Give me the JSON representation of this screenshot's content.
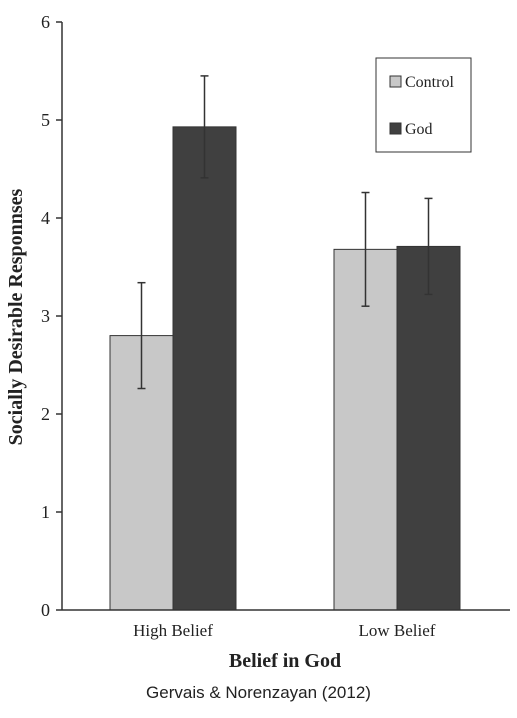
{
  "chart_data": {
    "type": "bar",
    "categories": [
      "High Belief",
      "Low Belief"
    ],
    "series": [
      {
        "name": "Control",
        "values": [
          2.8,
          3.68
        ],
        "error": [
          0.54,
          0.58
        ],
        "color": "#c8c8c8"
      },
      {
        "name": "God",
        "values": [
          4.93,
          3.71
        ],
        "error": [
          0.52,
          0.49
        ],
        "color": "#404040"
      }
    ],
    "xlabel": "Belief in God",
    "ylabel": "Socially Desirable Responnses",
    "ylim": [
      0,
      6
    ],
    "yticks": [
      "0",
      "1",
      "2",
      "3",
      "4",
      "5",
      "6"
    ],
    "grid": false,
    "legend_position": "top-right"
  },
  "caption": "Gervais & Norenzayan (2012)"
}
